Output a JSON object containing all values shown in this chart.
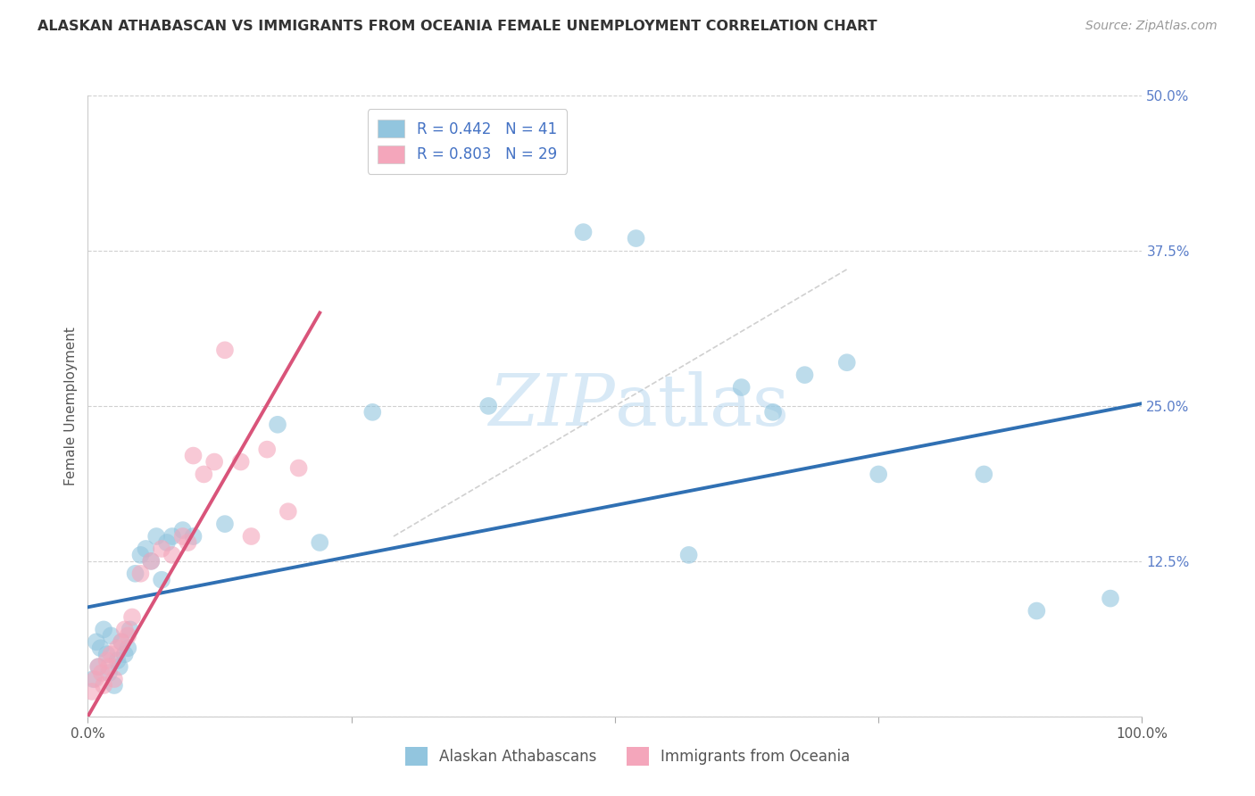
{
  "title": "ALASKAN ATHABASCAN VS IMMIGRANTS FROM OCEANIA FEMALE UNEMPLOYMENT CORRELATION CHART",
  "source": "Source: ZipAtlas.com",
  "ylabel": "Female Unemployment",
  "xlim": [
    0,
    1.0
  ],
  "ylim": [
    0,
    0.5
  ],
  "xticks": [
    0.0,
    0.25,
    0.5,
    0.75,
    1.0
  ],
  "xticklabels": [
    "0.0%",
    "",
    "",
    "",
    "100.0%"
  ],
  "yticks": [
    0.0,
    0.125,
    0.25,
    0.375,
    0.5
  ],
  "yticklabels": [
    "",
    "12.5%",
    "25.0%",
    "37.5%",
    "50.0%"
  ],
  "legend1_label": "R = 0.442   N = 41",
  "legend2_label": "R = 0.803   N = 29",
  "watermark_zip": "ZIP",
  "watermark_atlas": "atlas",
  "blue_color": "#92c5de",
  "pink_color": "#f4a6bb",
  "blue_line_color": "#3070b3",
  "pink_line_color": "#d9547a",
  "diagonal_color": "#d0d0d0",
  "blue_scatter_x": [
    0.005,
    0.008,
    0.01,
    0.012,
    0.015,
    0.018,
    0.02,
    0.022,
    0.025,
    0.028,
    0.03,
    0.032,
    0.035,
    0.038,
    0.04,
    0.045,
    0.05,
    0.055,
    0.06,
    0.065,
    0.07,
    0.075,
    0.08,
    0.09,
    0.1,
    0.13,
    0.18,
    0.22,
    0.27,
    0.38,
    0.47,
    0.52,
    0.57,
    0.62,
    0.65,
    0.68,
    0.72,
    0.75,
    0.85,
    0.9,
    0.97
  ],
  "blue_scatter_y": [
    0.03,
    0.06,
    0.04,
    0.055,
    0.07,
    0.05,
    0.035,
    0.065,
    0.025,
    0.045,
    0.04,
    0.06,
    0.05,
    0.055,
    0.07,
    0.115,
    0.13,
    0.135,
    0.125,
    0.145,
    0.11,
    0.14,
    0.145,
    0.15,
    0.145,
    0.155,
    0.235,
    0.14,
    0.245,
    0.25,
    0.39,
    0.385,
    0.13,
    0.265,
    0.245,
    0.275,
    0.285,
    0.195,
    0.195,
    0.085,
    0.095
  ],
  "pink_scatter_x": [
    0.004,
    0.007,
    0.01,
    0.013,
    0.015,
    0.018,
    0.02,
    0.022,
    0.025,
    0.028,
    0.032,
    0.035,
    0.038,
    0.042,
    0.05,
    0.06,
    0.07,
    0.08,
    0.09,
    0.095,
    0.1,
    0.11,
    0.12,
    0.13,
    0.145,
    0.155,
    0.17,
    0.19,
    0.2
  ],
  "pink_scatter_y": [
    0.02,
    0.03,
    0.04,
    0.035,
    0.025,
    0.045,
    0.04,
    0.05,
    0.03,
    0.055,
    0.06,
    0.07,
    0.065,
    0.08,
    0.115,
    0.125,
    0.135,
    0.13,
    0.145,
    0.14,
    0.21,
    0.195,
    0.205,
    0.295,
    0.205,
    0.145,
    0.215,
    0.165,
    0.2
  ],
  "blue_line_x": [
    0.0,
    1.0
  ],
  "blue_line_y": [
    0.088,
    0.252
  ],
  "pink_line_x": [
    0.0,
    0.22
  ],
  "pink_line_y": [
    0.0,
    0.325
  ],
  "diag_line_x": [
    0.29,
    0.72
  ],
  "diag_line_y": [
    0.145,
    0.36
  ]
}
